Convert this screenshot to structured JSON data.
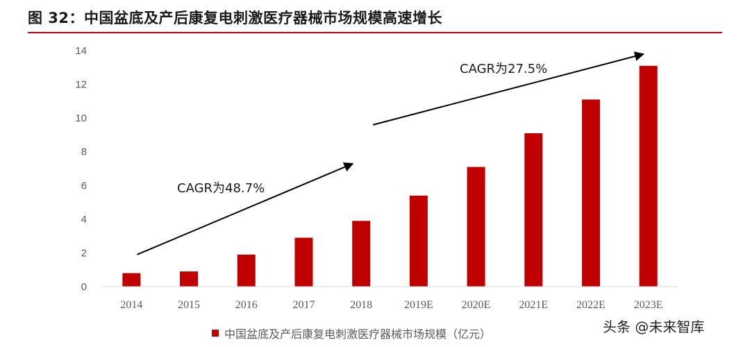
{
  "header": {
    "title": "图 32：中国盆底及产后康复电刺激医疗器械市场规模高速增长"
  },
  "watermark": {
    "text": "头条 @未来智库"
  },
  "colors": {
    "bar": "#c00000",
    "rule": "#c00000",
    "axis": "#d9d9d9",
    "text": "#595959"
  },
  "chart_data": {
    "type": "bar",
    "title": "",
    "xlabel": "",
    "ylabel": "",
    "categories": [
      "2014",
      "2015",
      "2016",
      "2017",
      "2018",
      "2019E",
      "2020E",
      "2021E",
      "2022E",
      "2023E"
    ],
    "series": [
      {
        "name": "中国盆底及产后康复电刺激医疗器械市场规模（亿元）",
        "values": [
          0.8,
          0.9,
          1.9,
          2.9,
          3.9,
          5.4,
          7.1,
          9.1,
          11.1,
          13.1
        ]
      }
    ],
    "ylim": [
      0,
      14
    ],
    "yticks": [
      0,
      2,
      4,
      6,
      8,
      10,
      12,
      14
    ],
    "grid": false,
    "legend": "bottom",
    "annotations": [
      {
        "text": "CAGR为48.7%",
        "from": [
          "2014",
          1.9
        ],
        "to": [
          "2018",
          7.3
        ]
      },
      {
        "text": "CAGR为27.5%",
        "from": [
          "2018",
          9.6
        ],
        "to": [
          "2023E",
          13.8
        ]
      }
    ]
  }
}
